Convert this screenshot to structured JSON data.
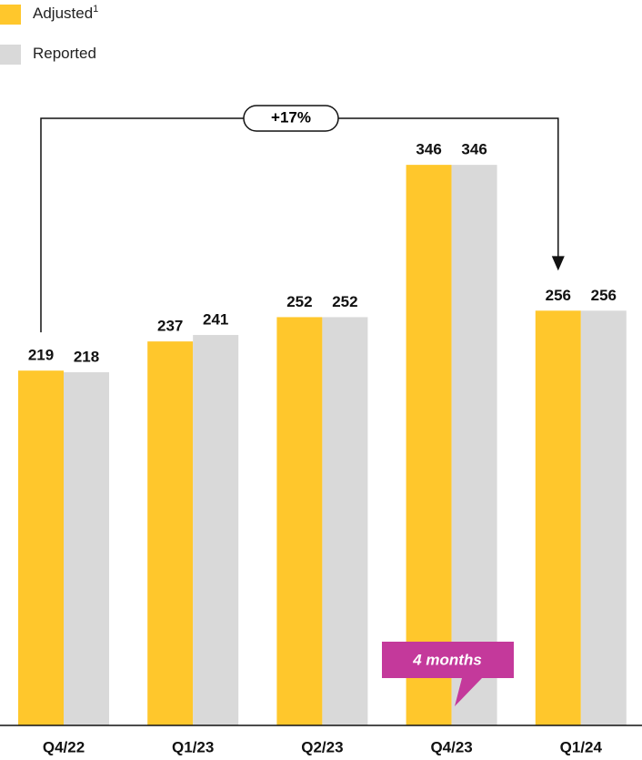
{
  "chart_data": {
    "type": "bar",
    "categories": [
      "Q4/22",
      "Q1/23",
      "Q2/23",
      "Q4/23",
      "Q1/24"
    ],
    "series": [
      {
        "name": "Adjusted",
        "footnote_marker": "1",
        "color": "#FFC72C",
        "values": [
          219,
          237,
          252,
          346,
          256
        ]
      },
      {
        "name": "Reported",
        "color": "#D9D9D9",
        "values": [
          218,
          241,
          252,
          346,
          256
        ]
      }
    ],
    "annotations": {
      "growth": "+17%",
      "callout": "4 months"
    },
    "callout_color": "#C4399B"
  }
}
